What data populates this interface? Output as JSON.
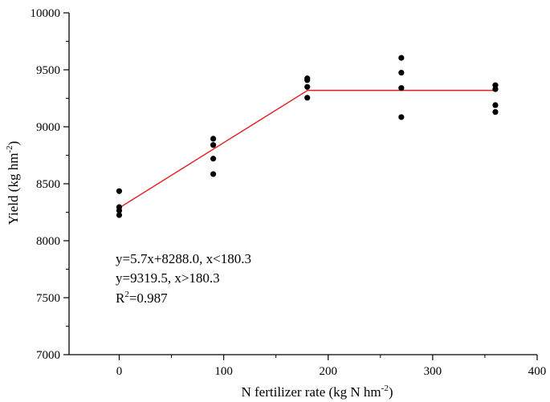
{
  "chart_data": {
    "type": "scatter",
    "xlabel": "N fertilizer rate (kg N hm",
    "xlabel_sup": "-2",
    "xlabel_tail": ")",
    "ylabel": "Yield (kg hm",
    "ylabel_sup": "-2",
    "ylabel_tail": ")",
    "xlim": [
      -48,
      400
    ],
    "ylim": [
      7000,
      10000
    ],
    "xticks": [
      0,
      100,
      200,
      300,
      400
    ],
    "yticks": [
      7000,
      7500,
      8000,
      8500,
      9000,
      9500,
      10000
    ],
    "grid": false,
    "points": [
      {
        "x": 0,
        "y": 8435
      },
      {
        "x": 0,
        "y": 8295
      },
      {
        "x": 0,
        "y": 8265
      },
      {
        "x": 0,
        "y": 8225
      },
      {
        "x": 90,
        "y": 8895
      },
      {
        "x": 90,
        "y": 8840
      },
      {
        "x": 90,
        "y": 8720
      },
      {
        "x": 90,
        "y": 8585
      },
      {
        "x": 180,
        "y": 9425
      },
      {
        "x": 180,
        "y": 9410
      },
      {
        "x": 180,
        "y": 9350
      },
      {
        "x": 180,
        "y": 9255
      },
      {
        "x": 270,
        "y": 9605
      },
      {
        "x": 270,
        "y": 9475
      },
      {
        "x": 270,
        "y": 9340
      },
      {
        "x": 270,
        "y": 9085
      },
      {
        "x": 360,
        "y": 9365
      },
      {
        "x": 360,
        "y": 9330
      },
      {
        "x": 360,
        "y": 9190
      },
      {
        "x": 360,
        "y": 9130
      }
    ],
    "fit_line": {
      "color": "#e8191c",
      "points": [
        {
          "x": 0,
          "y": 8288.0
        },
        {
          "x": 180.3,
          "y": 9319.5
        },
        {
          "x": 360,
          "y": 9319.5
        }
      ]
    },
    "equations": {
      "line1": "y=5.7x+8288.0, x<180.3",
      "line2": "y=9319.5, x>180.3",
      "line3_base": "R",
      "line3_sup": "2",
      "line3_tail": "=0.987"
    },
    "point_color": "#000000"
  }
}
